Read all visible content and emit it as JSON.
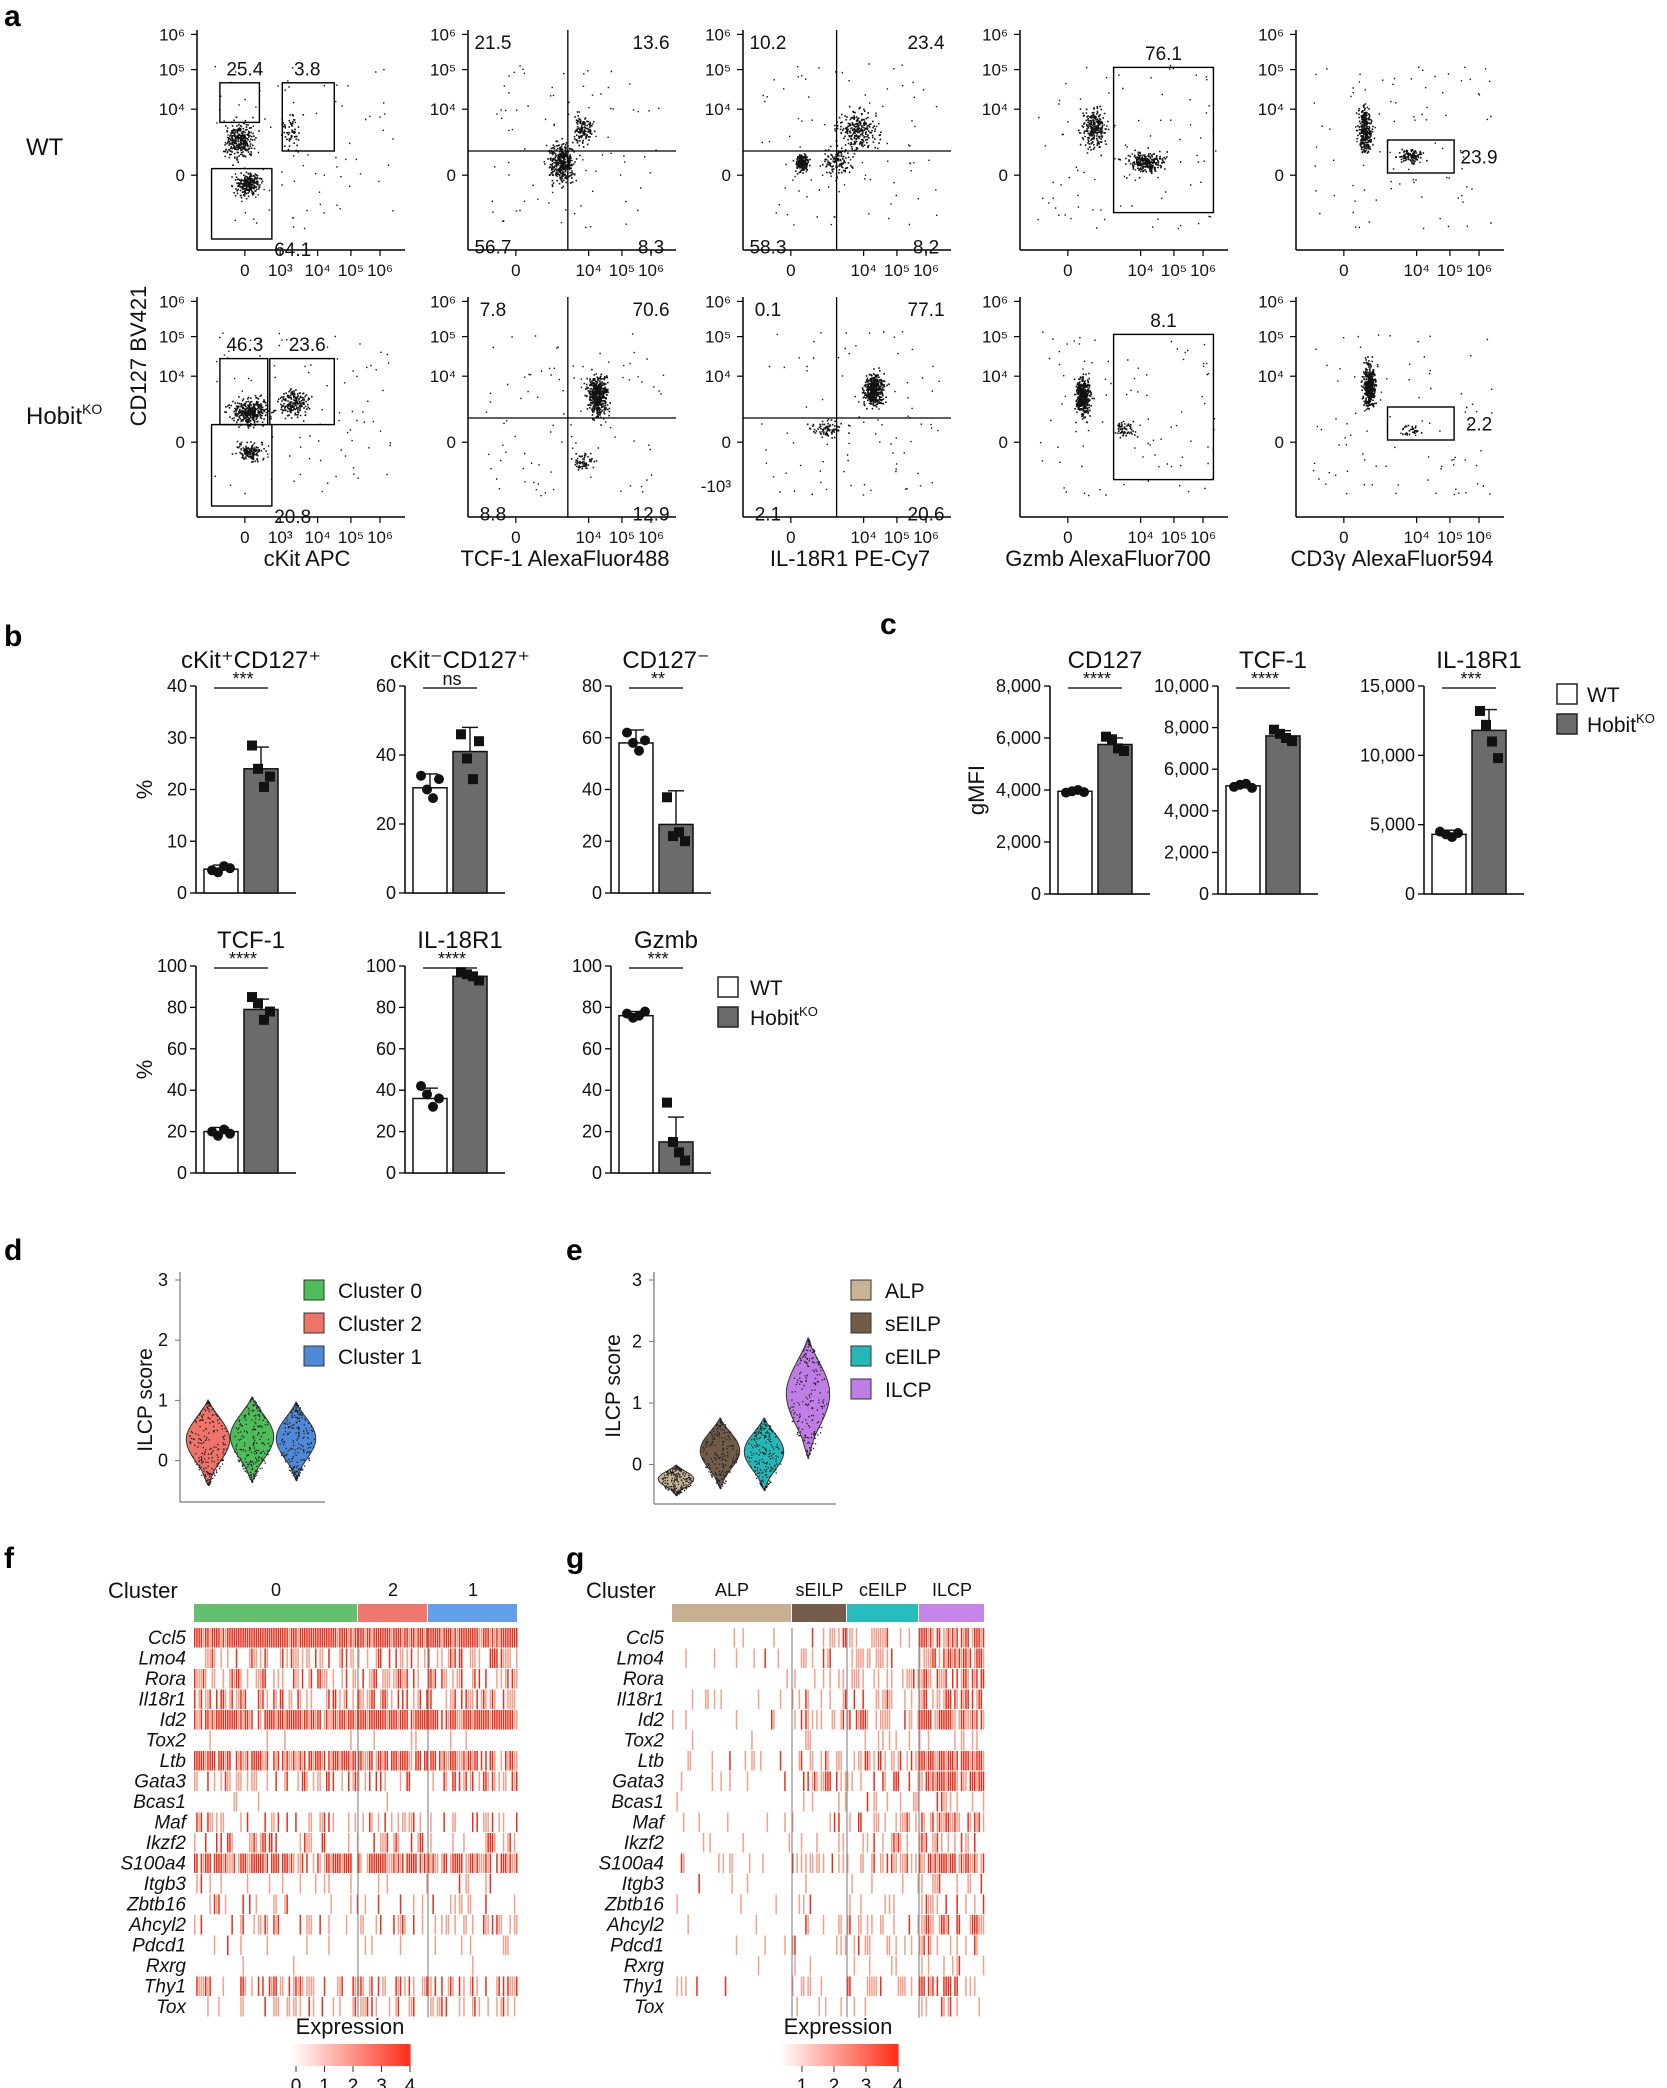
{
  "panel_labels": [
    "a",
    "b",
    "c",
    "d",
    "e",
    "f",
    "g"
  ],
  "panel_a": {
    "row_labels": [
      "WT",
      "Hobit"
    ],
    "row_label_sup": "KO",
    "y_axis_label": "CD127 BV421",
    "x_axis_labels": [
      "cKit APC",
      "TCF-1 AlexaFluor488",
      "IL-18R1 PE-Cy7",
      "Gzmb AlexaFluor700",
      "CD3γ AlexaFluor594"
    ],
    "ticks_x": [
      "0",
      "10³",
      "10⁴",
      "10⁵",
      "10⁶"
    ],
    "ticks_y": [
      "10⁶",
      "10⁵",
      "10⁴",
      "0"
    ],
    "ticks_y_neg": "-10³",
    "gate_values": {
      "wt": [
        "25.4",
        "3.8",
        "64.1",
        "21.5",
        "13.6",
        "56.7",
        "8.3",
        "10.2",
        "23.4",
        "58.3",
        "8.2",
        "76.1",
        "23.9"
      ],
      "ko": [
        "46.3",
        "23.6",
        "20.8",
        "7.8",
        "70.6",
        "8.8",
        "12.9",
        "0.1",
        "77.1",
        "2.1",
        "20.6",
        "8.1",
        "2.2"
      ]
    }
  },
  "chart_data": [
    {
      "type": "bar",
      "panel": "b",
      "title": "cKit⁺CD127⁺",
      "ylabel": "%",
      "ylim": [
        0,
        40
      ],
      "yticks": [
        "0",
        "10",
        "20",
        "30",
        "40"
      ],
      "categories": [
        "WT",
        "HobitKO"
      ],
      "values": [
        4.6,
        24
      ],
      "errors": [
        0.8,
        4.2
      ],
      "points": [
        [
          4.4,
          4.0,
          5.2,
          4.8
        ],
        [
          28.5,
          24,
          20.5,
          22.5
        ]
      ],
      "significance": "***"
    },
    {
      "type": "bar",
      "panel": "b",
      "title": "cKit⁻CD127⁺",
      "ylim": [
        0,
        60
      ],
      "yticks": [
        "0",
        "20",
        "40",
        "60"
      ],
      "categories": [
        "WT",
        "HobitKO"
      ],
      "values": [
        30.5,
        41
      ],
      "errors": [
        4,
        7
      ],
      "points": [
        [
          34,
          30,
          27.5,
          33
        ],
        [
          46,
          39,
          33,
          44
        ]
      ],
      "significance": "ns"
    },
    {
      "type": "bar",
      "panel": "b",
      "title": "CD127⁻",
      "ylim": [
        0,
        80
      ],
      "yticks": [
        "0",
        "20",
        "40",
        "60",
        "80"
      ],
      "categories": [
        "WT",
        "HobitKO"
      ],
      "values": [
        58,
        26.5
      ],
      "errors": [
        5,
        13
      ],
      "points": [
        [
          62,
          58,
          55,
          59
        ],
        [
          37,
          22,
          23.5,
          20
        ]
      ],
      "significance": "**"
    },
    {
      "type": "bar",
      "panel": "b",
      "title": "TCF-1",
      "ylabel": "%",
      "ylim": [
        0,
        100
      ],
      "yticks": [
        "0",
        "20",
        "40",
        "60",
        "80",
        "100"
      ],
      "categories": [
        "WT",
        "HobitKO"
      ],
      "values": [
        20,
        79
      ],
      "errors": [
        2,
        5
      ],
      "points": [
        [
          20,
          18,
          21,
          19
        ],
        [
          85,
          82,
          74,
          78
        ]
      ],
      "significance": "****"
    },
    {
      "type": "bar",
      "panel": "b",
      "title": "IL-18R1",
      "ylim": [
        0,
        100
      ],
      "yticks": [
        "0",
        "20",
        "40",
        "60",
        "80",
        "100"
      ],
      "categories": [
        "WT",
        "HobitKO"
      ],
      "values": [
        36,
        95
      ],
      "errors": [
        5,
        2
      ],
      "points": [
        [
          42,
          38,
          32,
          36
        ],
        [
          97,
          96,
          95,
          93
        ]
      ],
      "significance": "****"
    },
    {
      "type": "bar",
      "panel": "b",
      "title": "Gzmb",
      "ylim": [
        0,
        100
      ],
      "yticks": [
        "0",
        "20",
        "40",
        "60",
        "80",
        "100"
      ],
      "categories": [
        "WT",
        "HobitKO"
      ],
      "values": [
        76,
        15
      ],
      "errors": [
        2,
        12
      ],
      "points": [
        [
          77,
          75,
          76,
          78
        ],
        [
          34,
          15,
          10,
          6
        ]
      ],
      "significance": "***"
    },
    {
      "type": "bar",
      "panel": "c",
      "title": "CD127",
      "ylabel": "gMFI",
      "ylim": [
        0,
        8000
      ],
      "yticks": [
        "0",
        "2,000",
        "4,000",
        "6,000",
        "8,000"
      ],
      "categories": [
        "WT",
        "HobitKO"
      ],
      "values": [
        3950,
        5750
      ],
      "errors": [
        80,
        250
      ],
      "points": [
        [
          3900,
          3950,
          4000,
          3920
        ],
        [
          6050,
          5950,
          5600,
          5500
        ]
      ],
      "significance": "****"
    },
    {
      "type": "bar",
      "panel": "c",
      "title": "TCF-1",
      "ylim": [
        0,
        10000
      ],
      "yticks": [
        "0",
        "2,000",
        "4,000",
        "6,000",
        "8,000",
        "10,000"
      ],
      "categories": [
        "WT",
        "HobitKO"
      ],
      "values": [
        5200,
        7600
      ],
      "errors": [
        120,
        250
      ],
      "points": [
        [
          5150,
          5250,
          5300,
          5100
        ],
        [
          7900,
          7700,
          7500,
          7350
        ]
      ],
      "significance": "****"
    },
    {
      "type": "bar",
      "panel": "c",
      "title": "IL-18R1",
      "ylim": [
        0,
        15000
      ],
      "yticks": [
        "0",
        "5,000",
        "10,000",
        "15,000"
      ],
      "categories": [
        "WT",
        "HobitKO"
      ],
      "values": [
        4300,
        11800
      ],
      "errors": [
        300,
        1500
      ],
      "points": [
        [
          4500,
          4300,
          4100,
          4400
        ],
        [
          13200,
          12200,
          11000,
          9800
        ]
      ],
      "significance": "***"
    }
  ],
  "legend_bc": {
    "items": [
      "WT",
      "Hobit"
    ],
    "sup": [
      "",
      "KO"
    ]
  },
  "panel_d": {
    "ylabel": "ILCP score",
    "yticks": [
      "0",
      "1",
      "2",
      "3"
    ],
    "legend": [
      {
        "label": "Cluster 0",
        "color": "#4dbd58"
      },
      {
        "label": "Cluster 2",
        "color": "#f0736a"
      },
      {
        "label": "Cluster 1",
        "color": "#4f88d8"
      }
    ]
  },
  "panel_e": {
    "ylabel": "ILCP score",
    "yticks": [
      "0",
      "1",
      "2",
      "3"
    ],
    "legend": [
      {
        "label": "ALP",
        "color": "#c9b394"
      },
      {
        "label": "sEILP",
        "color": "#725c48"
      },
      {
        "label": "cEILP",
        "color": "#25b8b8"
      },
      {
        "label": "ILCP",
        "color": "#c17de6"
      }
    ]
  },
  "panel_f": {
    "title": "Cluster",
    "groups": [
      {
        "label": "0",
        "color": "#64c06e"
      },
      {
        "label": "2",
        "color": "#f0776e"
      },
      {
        "label": "1",
        "color": "#62a0ec"
      }
    ],
    "legend_title": "Expression",
    "legend_ticks": [
      "0",
      "1",
      "2",
      "3",
      "4"
    ]
  },
  "panel_g": {
    "title": "Cluster",
    "groups": [
      {
        "label": "ALP",
        "color": "#c8af92"
      },
      {
        "label": "sEILP",
        "color": "#735c49"
      },
      {
        "label": "cEILP",
        "color": "#27bdbd"
      },
      {
        "label": "ILCP",
        "color": "#c685e8"
      }
    ],
    "legend_title": "Expression",
    "legend_ticks": [
      "1",
      "2",
      "3",
      "4"
    ]
  },
  "genes": [
    "Ccl5",
    "Lmo4",
    "Rora",
    "Il18r1",
    "Id2",
    "Tox2",
    "Ltb",
    "Gata3",
    "Bcas1",
    "Maf",
    "Ikzf2",
    "S100a4",
    "Itgb3",
    "Zbtb16",
    "Ahcyl2",
    "Pdcd1",
    "Rxrg",
    "Thy1",
    "Tox"
  ]
}
